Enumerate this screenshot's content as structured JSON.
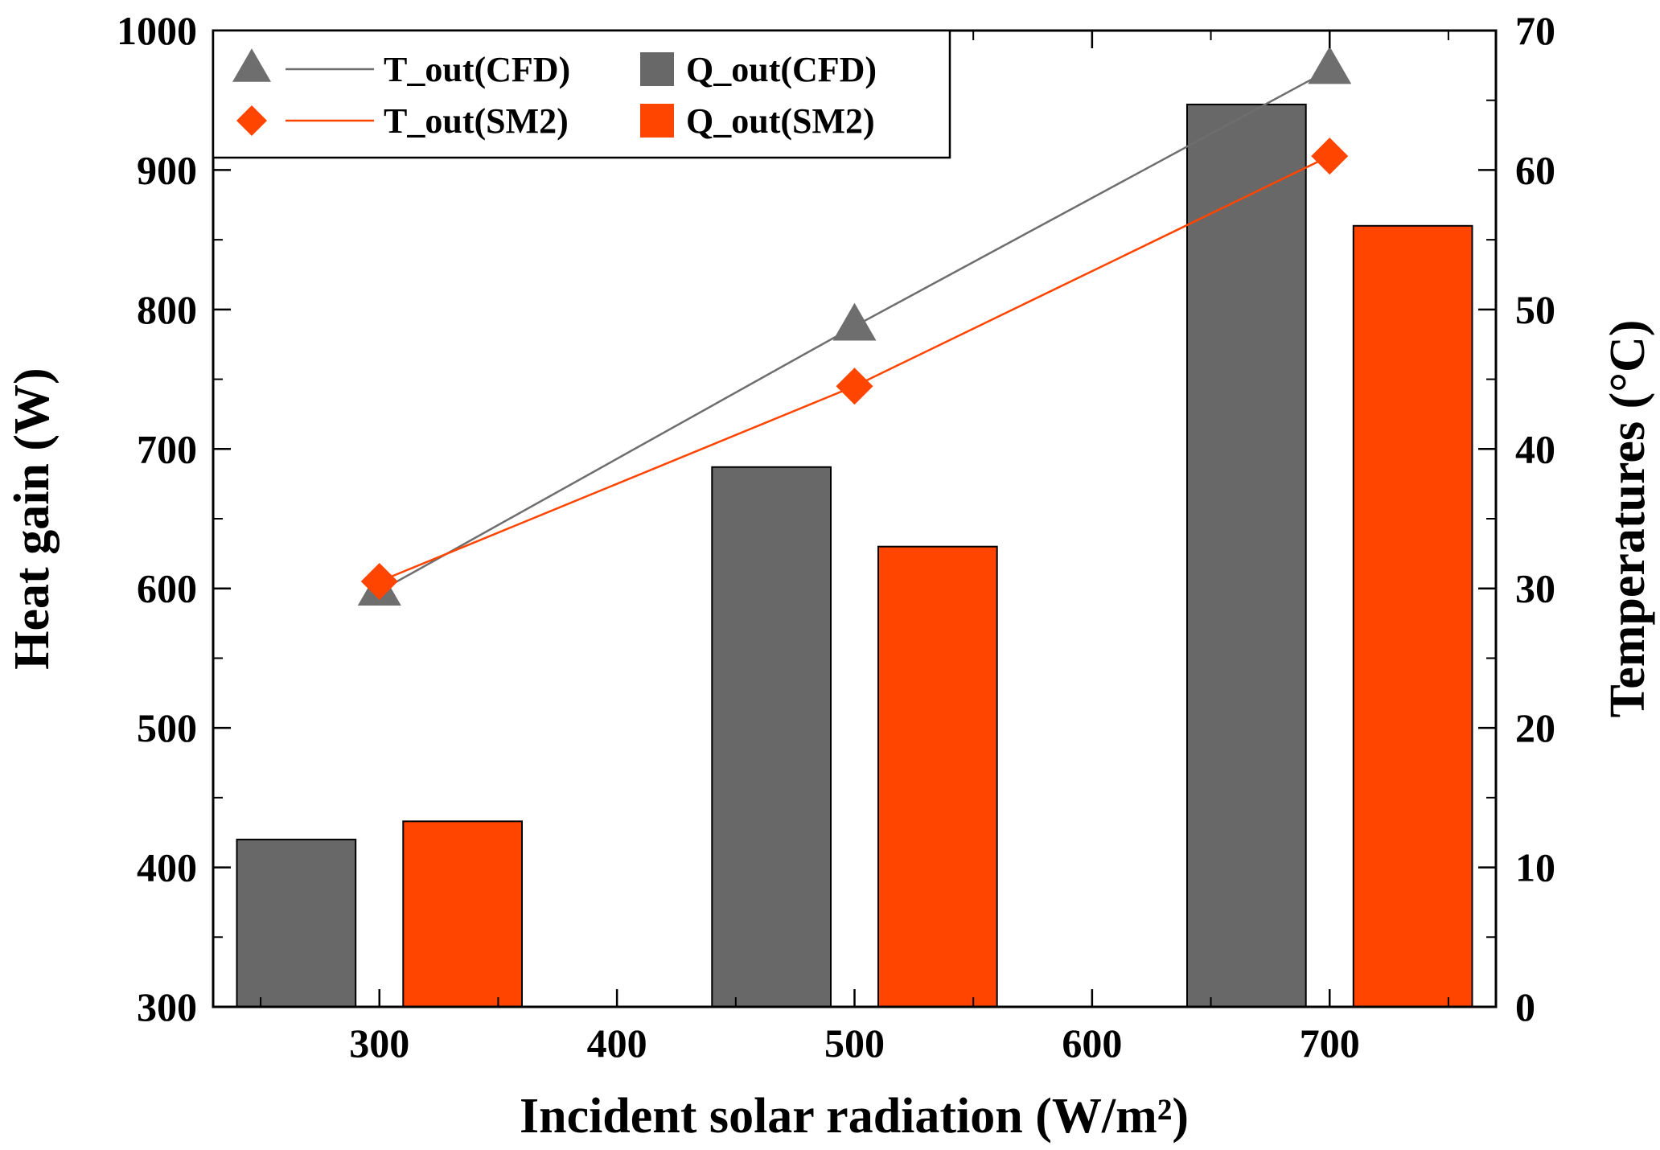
{
  "chart_data": {
    "type": "bar",
    "title": "",
    "xlabel": "Incident solar radiation (W/m²)",
    "ylabel": "Heat gain (W)",
    "y2label": "Temperatures (°C)",
    "xlim": [
      230,
      770
    ],
    "xticks": [
      "300",
      "400",
      "500",
      "600",
      "700"
    ],
    "ylim": [
      300,
      1000
    ],
    "yticks": [
      "300",
      "400",
      "500",
      "600",
      "700",
      "800",
      "900",
      "1000"
    ],
    "y2lim": [
      0,
      70
    ],
    "y2ticks": [
      "0",
      "10",
      "20",
      "30",
      "40",
      "50",
      "60",
      "70"
    ],
    "x": [
      300,
      500,
      700
    ],
    "grid": false,
    "legend_position": "top-left",
    "series": [
      {
        "name": "T_out(CFD)",
        "kind": "line",
        "axis": "right",
        "marker": "triangle",
        "color": "#6e6e6e",
        "values": [
          29.8,
          48.8,
          67.2
        ]
      },
      {
        "name": "T_out(SM2)",
        "kind": "line",
        "axis": "right",
        "marker": "diamond",
        "color": "#ff4500",
        "values": [
          30.5,
          44.5,
          61.0
        ]
      },
      {
        "name": "Q_out(CFD)",
        "kind": "bar",
        "axis": "left",
        "color": "#686868",
        "offset": -35,
        "values": [
          420,
          687,
          947
        ]
      },
      {
        "name": "Q_out(SM2)",
        "kind": "bar",
        "axis": "left",
        "color": "#ff4500",
        "offset": 35,
        "values": [
          433,
          630,
          860
        ]
      }
    ]
  }
}
